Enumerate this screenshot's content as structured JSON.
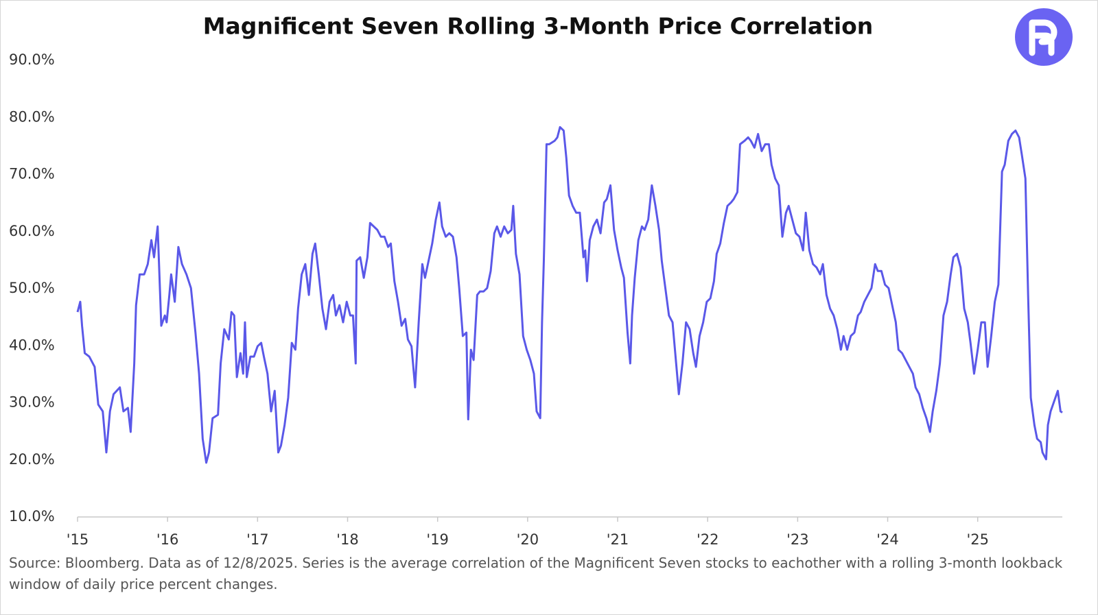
{
  "chart_data": {
    "type": "line",
    "title": "Magnificent Seven Rolling 3-Month Price Correlation",
    "source": "Source: Bloomberg. Data as of 12/8/2025. Series is the average correlation of the Magnificent Seven stocks to eachother with a rolling 3-month lookback window of daily price percent changes.",
    "xlim": [
      2015,
      2025.94
    ],
    "ylim": [
      10,
      90
    ],
    "xticks": [
      {
        "value": 2015,
        "label": "'15"
      },
      {
        "value": 2016,
        "label": "'16"
      },
      {
        "value": 2017,
        "label": "'17"
      },
      {
        "value": 2018,
        "label": "'18"
      },
      {
        "value": 2019,
        "label": "'19"
      },
      {
        "value": 2020,
        "label": "'20"
      },
      {
        "value": 2021,
        "label": "'21"
      },
      {
        "value": 2022,
        "label": "'22"
      },
      {
        "value": 2023,
        "label": "'23"
      },
      {
        "value": 2024,
        "label": "'24"
      },
      {
        "value": 2025,
        "label": "'25"
      }
    ],
    "yticks": [
      {
        "value": 10,
        "label": "10.0%"
      },
      {
        "value": 20,
        "label": "20.0%"
      },
      {
        "value": 30,
        "label": "30.0%"
      },
      {
        "value": 40,
        "label": "40.0%"
      },
      {
        "value": 50,
        "label": "50.0%"
      },
      {
        "value": 60,
        "label": "60.0%"
      },
      {
        "value": 70,
        "label": "70.0%"
      },
      {
        "value": 80,
        "label": "80.0%"
      },
      {
        "value": 90,
        "label": "90.0%"
      }
    ],
    "grid": false,
    "x": [
      2015.0,
      2015.03,
      2015.05,
      2015.08,
      2015.13,
      2015.19,
      2015.23,
      2015.28,
      2015.32,
      2015.36,
      2015.4,
      2015.47,
      2015.51,
      2015.56,
      2015.59,
      2015.63,
      2015.65,
      2015.69,
      2015.74,
      2015.78,
      2015.82,
      2015.85,
      2015.89,
      2015.93,
      2015.97,
      2015.99,
      2016.02,
      2016.04,
      2016.08,
      2016.12,
      2016.16,
      2016.21,
      2016.26,
      2016.31,
      2016.35,
      2016.39,
      2016.43,
      2016.46,
      2016.5,
      2016.56,
      2016.59,
      2016.63,
      2016.68,
      2016.71,
      2016.74,
      2016.77,
      2016.81,
      2016.84,
      2016.86,
      2016.88,
      2016.92,
      2016.96,
      2017.0,
      2017.04,
      2017.07,
      2017.11,
      2017.15,
      2017.19,
      2017.23,
      2017.26,
      2017.3,
      2017.34,
      2017.38,
      2017.42,
      2017.45,
      2017.49,
      2017.53,
      2017.57,
      2017.61,
      2017.64,
      2017.68,
      2017.72,
      2017.76,
      2017.8,
      2017.84,
      2017.87,
      2017.91,
      2017.95,
      2017.99,
      2018.03,
      2018.06,
      2018.09,
      2018.1,
      2018.14,
      2018.18,
      2018.22,
      2018.25,
      2018.29,
      2018.33,
      2018.37,
      2018.41,
      2018.45,
      2018.48,
      2018.52,
      2018.56,
      2018.6,
      2018.64,
      2018.67,
      2018.71,
      2018.75,
      2018.79,
      2018.83,
      2018.86,
      2018.9,
      2018.94,
      2018.98,
      2019.02,
      2019.05,
      2019.09,
      2019.13,
      2019.17,
      2019.21,
      2019.24,
      2019.28,
      2019.32,
      2019.34,
      2019.37,
      2019.4,
      2019.44,
      2019.47,
      2019.51,
      2019.55,
      2019.59,
      2019.63,
      2019.66,
      2019.7,
      2019.74,
      2019.78,
      2019.82,
      2019.84,
      2019.87,
      2019.91,
      2019.95,
      2019.99,
      2020.03,
      2020.07,
      2020.1,
      2020.14,
      2020.16,
      2020.18,
      2020.21,
      2020.24,
      2020.3,
      2020.33,
      2020.36,
      2020.4,
      2020.43,
      2020.46,
      2020.5,
      2020.54,
      2020.58,
      2020.62,
      2020.64,
      2020.66,
      2020.69,
      2020.73,
      2020.77,
      2020.81,
      2020.85,
      2020.88,
      2020.92,
      2020.96,
      2021.0,
      2021.04,
      2021.07,
      2021.11,
      2021.14,
      2021.16,
      2021.19,
      2021.23,
      2021.27,
      2021.3,
      2021.34,
      2021.38,
      2021.42,
      2021.46,
      2021.49,
      2021.53,
      2021.57,
      2021.61,
      2021.65,
      2021.68,
      2021.72,
      2021.76,
      2021.8,
      2021.84,
      2021.87,
      2021.91,
      2021.95,
      2021.99,
      2022.03,
      2022.07,
      2022.1,
      2022.14,
      2022.18,
      2022.22,
      2022.26,
      2022.29,
      2022.33,
      2022.36,
      2022.41,
      2022.45,
      2022.48,
      2022.52,
      2022.56,
      2022.6,
      2022.64,
      2022.68,
      2022.71,
      2022.75,
      2022.79,
      2022.83,
      2022.87,
      2022.9,
      2022.94,
      2022.98,
      2023.02,
      2023.06,
      2023.09,
      2023.13,
      2023.17,
      2023.21,
      2023.25,
      2023.28,
      2023.32,
      2023.36,
      2023.4,
      2023.44,
      2023.48,
      2023.51,
      2023.55,
      2023.59,
      2023.63,
      2023.67,
      2023.7,
      2023.74,
      2023.78,
      2023.82,
      2023.86,
      2023.89,
      2023.93,
      2023.97,
      2024.01,
      2024.05,
      2024.09,
      2024.12,
      2024.16,
      2024.2,
      2024.24,
      2024.28,
      2024.31,
      2024.35,
      2024.39,
      2024.43,
      2024.47,
      2024.5,
      2024.54,
      2024.58,
      2024.62,
      2024.66,
      2024.7,
      2024.73,
      2024.77,
      2024.81,
      2024.85,
      2024.89,
      2024.92,
      2024.96,
      2025.0,
      2025.04,
      2025.08,
      2025.11,
      2025.15,
      2025.19,
      2025.23,
      2025.27,
      2025.3,
      2025.34,
      2025.38,
      2025.42,
      2025.46,
      2025.49,
      2025.53,
      2025.56,
      2025.59,
      2025.63,
      2025.66,
      2025.7,
      2025.72,
      2025.76,
      2025.78,
      2025.81,
      2025.85,
      2025.89,
      2025.92,
      2025.94
    ],
    "series": [
      {
        "name": "Correlation",
        "color": "#5a58e8",
        "values": [
          45.9,
          47.7,
          43.5,
          38.7,
          38.1,
          36.3,
          29.7,
          28.5,
          21.3,
          28.5,
          31.5,
          32.7,
          28.5,
          29.1,
          24.9,
          36.9,
          47.1,
          52.5,
          52.5,
          54.3,
          58.5,
          55.5,
          60.9,
          43.5,
          45.3,
          44.1,
          48.9,
          52.5,
          47.7,
          57.3,
          54.3,
          52.5,
          50.1,
          42.3,
          35.1,
          23.7,
          19.5,
          21.3,
          27.3,
          27.9,
          36.9,
          42.9,
          41.1,
          45.9,
          45.3,
          34.5,
          38.7,
          35.1,
          44.1,
          34.5,
          38.1,
          38.1,
          39.9,
          40.5,
          38.1,
          35.1,
          28.5,
          32.1,
          21.3,
          22.5,
          26.1,
          30.9,
          40.5,
          39.3,
          46.5,
          52.5,
          54.3,
          48.9,
          56.1,
          57.9,
          52.5,
          46.5,
          42.9,
          47.7,
          48.9,
          45.3,
          47.1,
          44.1,
          47.7,
          45.3,
          45.3,
          36.9,
          54.9,
          55.5,
          51.9,
          55.5,
          61.5,
          60.9,
          60.3,
          59.1,
          59.1,
          57.3,
          57.9,
          51.3,
          47.7,
          43.5,
          44.7,
          41.1,
          39.9,
          32.7,
          44.1,
          54.3,
          51.9,
          54.9,
          57.9,
          62.1,
          65.1,
          60.9,
          59.1,
          59.7,
          59.1,
          55.5,
          50.1,
          41.7,
          42.3,
          27.1,
          39.3,
          37.5,
          48.9,
          49.5,
          49.5,
          50.1,
          53.1,
          59.7,
          60.9,
          59.1,
          60.9,
          59.7,
          60.3,
          64.5,
          56.1,
          52.5,
          41.7,
          39.3,
          37.5,
          35.1,
          28.5,
          27.3,
          44.1,
          54.9,
          75.3,
          75.3,
          75.9,
          76.5,
          78.3,
          77.7,
          72.9,
          66.3,
          64.5,
          63.3,
          63.3,
          55.5,
          56.7,
          51.3,
          58.5,
          60.9,
          62.1,
          59.7,
          65.1,
          65.7,
          68.1,
          60.3,
          56.7,
          53.7,
          51.9,
          42.3,
          36.9,
          45.3,
          51.9,
          58.5,
          60.9,
          60.3,
          62.1,
          68.1,
          64.5,
          60.3,
          54.9,
          50.1,
          45.3,
          44.1,
          36.9,
          31.5,
          36.9,
          44.1,
          42.9,
          38.7,
          36.3,
          41.7,
          44.1,
          47.7,
          48.3,
          51.3,
          56.1,
          57.9,
          61.5,
          64.5,
          65.1,
          65.7,
          66.9,
          75.3,
          75.9,
          76.5,
          75.9,
          74.7,
          77.1,
          74.1,
          75.3,
          75.3,
          71.7,
          69.3,
          68.1,
          59.1,
          63.3,
          64.5,
          62.1,
          59.7,
          59.1,
          56.7,
          63.3,
          56.7,
          54.3,
          53.7,
          52.5,
          54.3,
          48.9,
          46.5,
          45.3,
          42.9,
          39.3,
          41.7,
          39.3,
          41.7,
          42.3,
          45.3,
          45.9,
          47.7,
          48.9,
          50.1,
          54.3,
          53.1,
          53.1,
          50.7,
          50.1,
          47.1,
          44.1,
          39.3,
          38.7,
          37.5,
          36.3,
          35.1,
          32.7,
          31.5,
          29.1,
          27.3,
          24.9,
          28.5,
          32.1,
          36.9,
          45.3,
          47.7,
          52.5,
          55.5,
          56.1,
          53.7,
          46.5,
          44.1,
          40.5,
          35.1,
          39.3,
          44.1,
          44.1,
          36.3,
          41.7,
          47.7,
          50.7,
          70.5,
          71.7,
          75.9,
          77.1,
          77.7,
          76.5,
          73.5,
          69.3,
          48.9,
          30.9,
          26.1,
          23.7,
          23.1,
          21.3,
          20.1,
          26.1,
          28.5,
          30.3,
          32.1,
          28.5,
          28.3
        ]
      }
    ]
  }
}
